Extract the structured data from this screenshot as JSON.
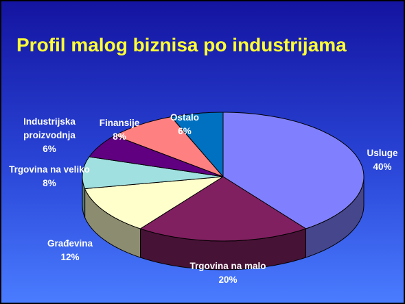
{
  "chart_data": {
    "type": "pie3d",
    "title": "Profil malog biznisa po industrijama",
    "categories": [
      "Usluge",
      "Trgovina na malo",
      "Građevina",
      "Trgovina na veliko",
      "Industrijska proizvodnja",
      "Finansije",
      "Ostalo"
    ],
    "values": [
      40,
      20,
      12,
      8,
      6,
      8,
      6
    ],
    "value_labels": [
      "40%",
      "20%",
      "12%",
      "8%",
      "6%",
      "8%",
      "6%"
    ],
    "colors": [
      "#8080ff",
      "#802060",
      "#ffffcc",
      "#a0e0e0",
      "#600080",
      "#ff8080",
      "#0070c0"
    ]
  }
}
